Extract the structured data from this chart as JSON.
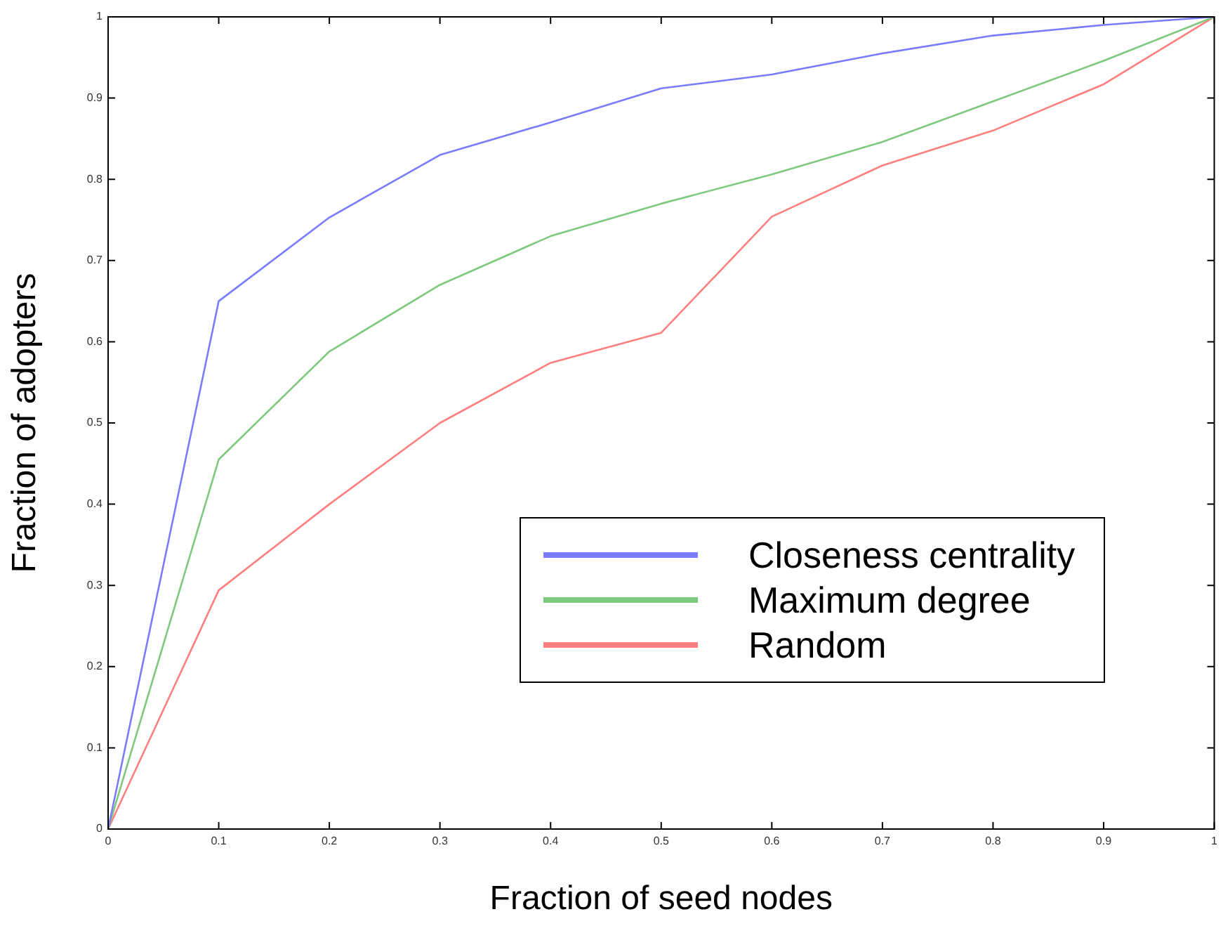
{
  "chart_data": {
    "type": "line",
    "xlabel": "Fraction of seed nodes",
    "ylabel": "Fraction of adopters",
    "x": [
      0,
      0.1,
      0.2,
      0.3,
      0.4,
      0.5,
      0.6,
      0.7,
      0.8,
      0.9,
      1
    ],
    "series": [
      {
        "name": "Closeness centrality",
        "color": "#7b7bff",
        "values": [
          0,
          0.65,
          0.753,
          0.83,
          0.87,
          0.912,
          0.929,
          0.955,
          0.977,
          0.99,
          1
        ]
      },
      {
        "name": "Maximum degree",
        "color": "#7fc97f",
        "values": [
          0,
          0.455,
          0.588,
          0.67,
          0.73,
          0.77,
          0.806,
          0.846,
          0.896,
          0.946,
          1
        ]
      },
      {
        "name": "Random",
        "color": "#ff7f7f",
        "values": [
          0,
          0.294,
          0.4,
          0.5,
          0.574,
          0.611,
          0.754,
          0.817,
          0.86,
          0.917,
          1
        ]
      }
    ],
    "xlim": [
      0,
      1
    ],
    "xticks": [
      0,
      0.1,
      0.2,
      0.3,
      0.4,
      0.5,
      0.6,
      0.7,
      0.8,
      0.9,
      1
    ],
    "ylim": [
      0,
      1
    ],
    "yticks": [
      0,
      0.1,
      0.2,
      0.3,
      0.4,
      0.5,
      0.6,
      0.7,
      0.8,
      0.9,
      1
    ],
    "grid": false,
    "legend": "bottom right",
    "marker": "none",
    "line_style": "solid"
  }
}
